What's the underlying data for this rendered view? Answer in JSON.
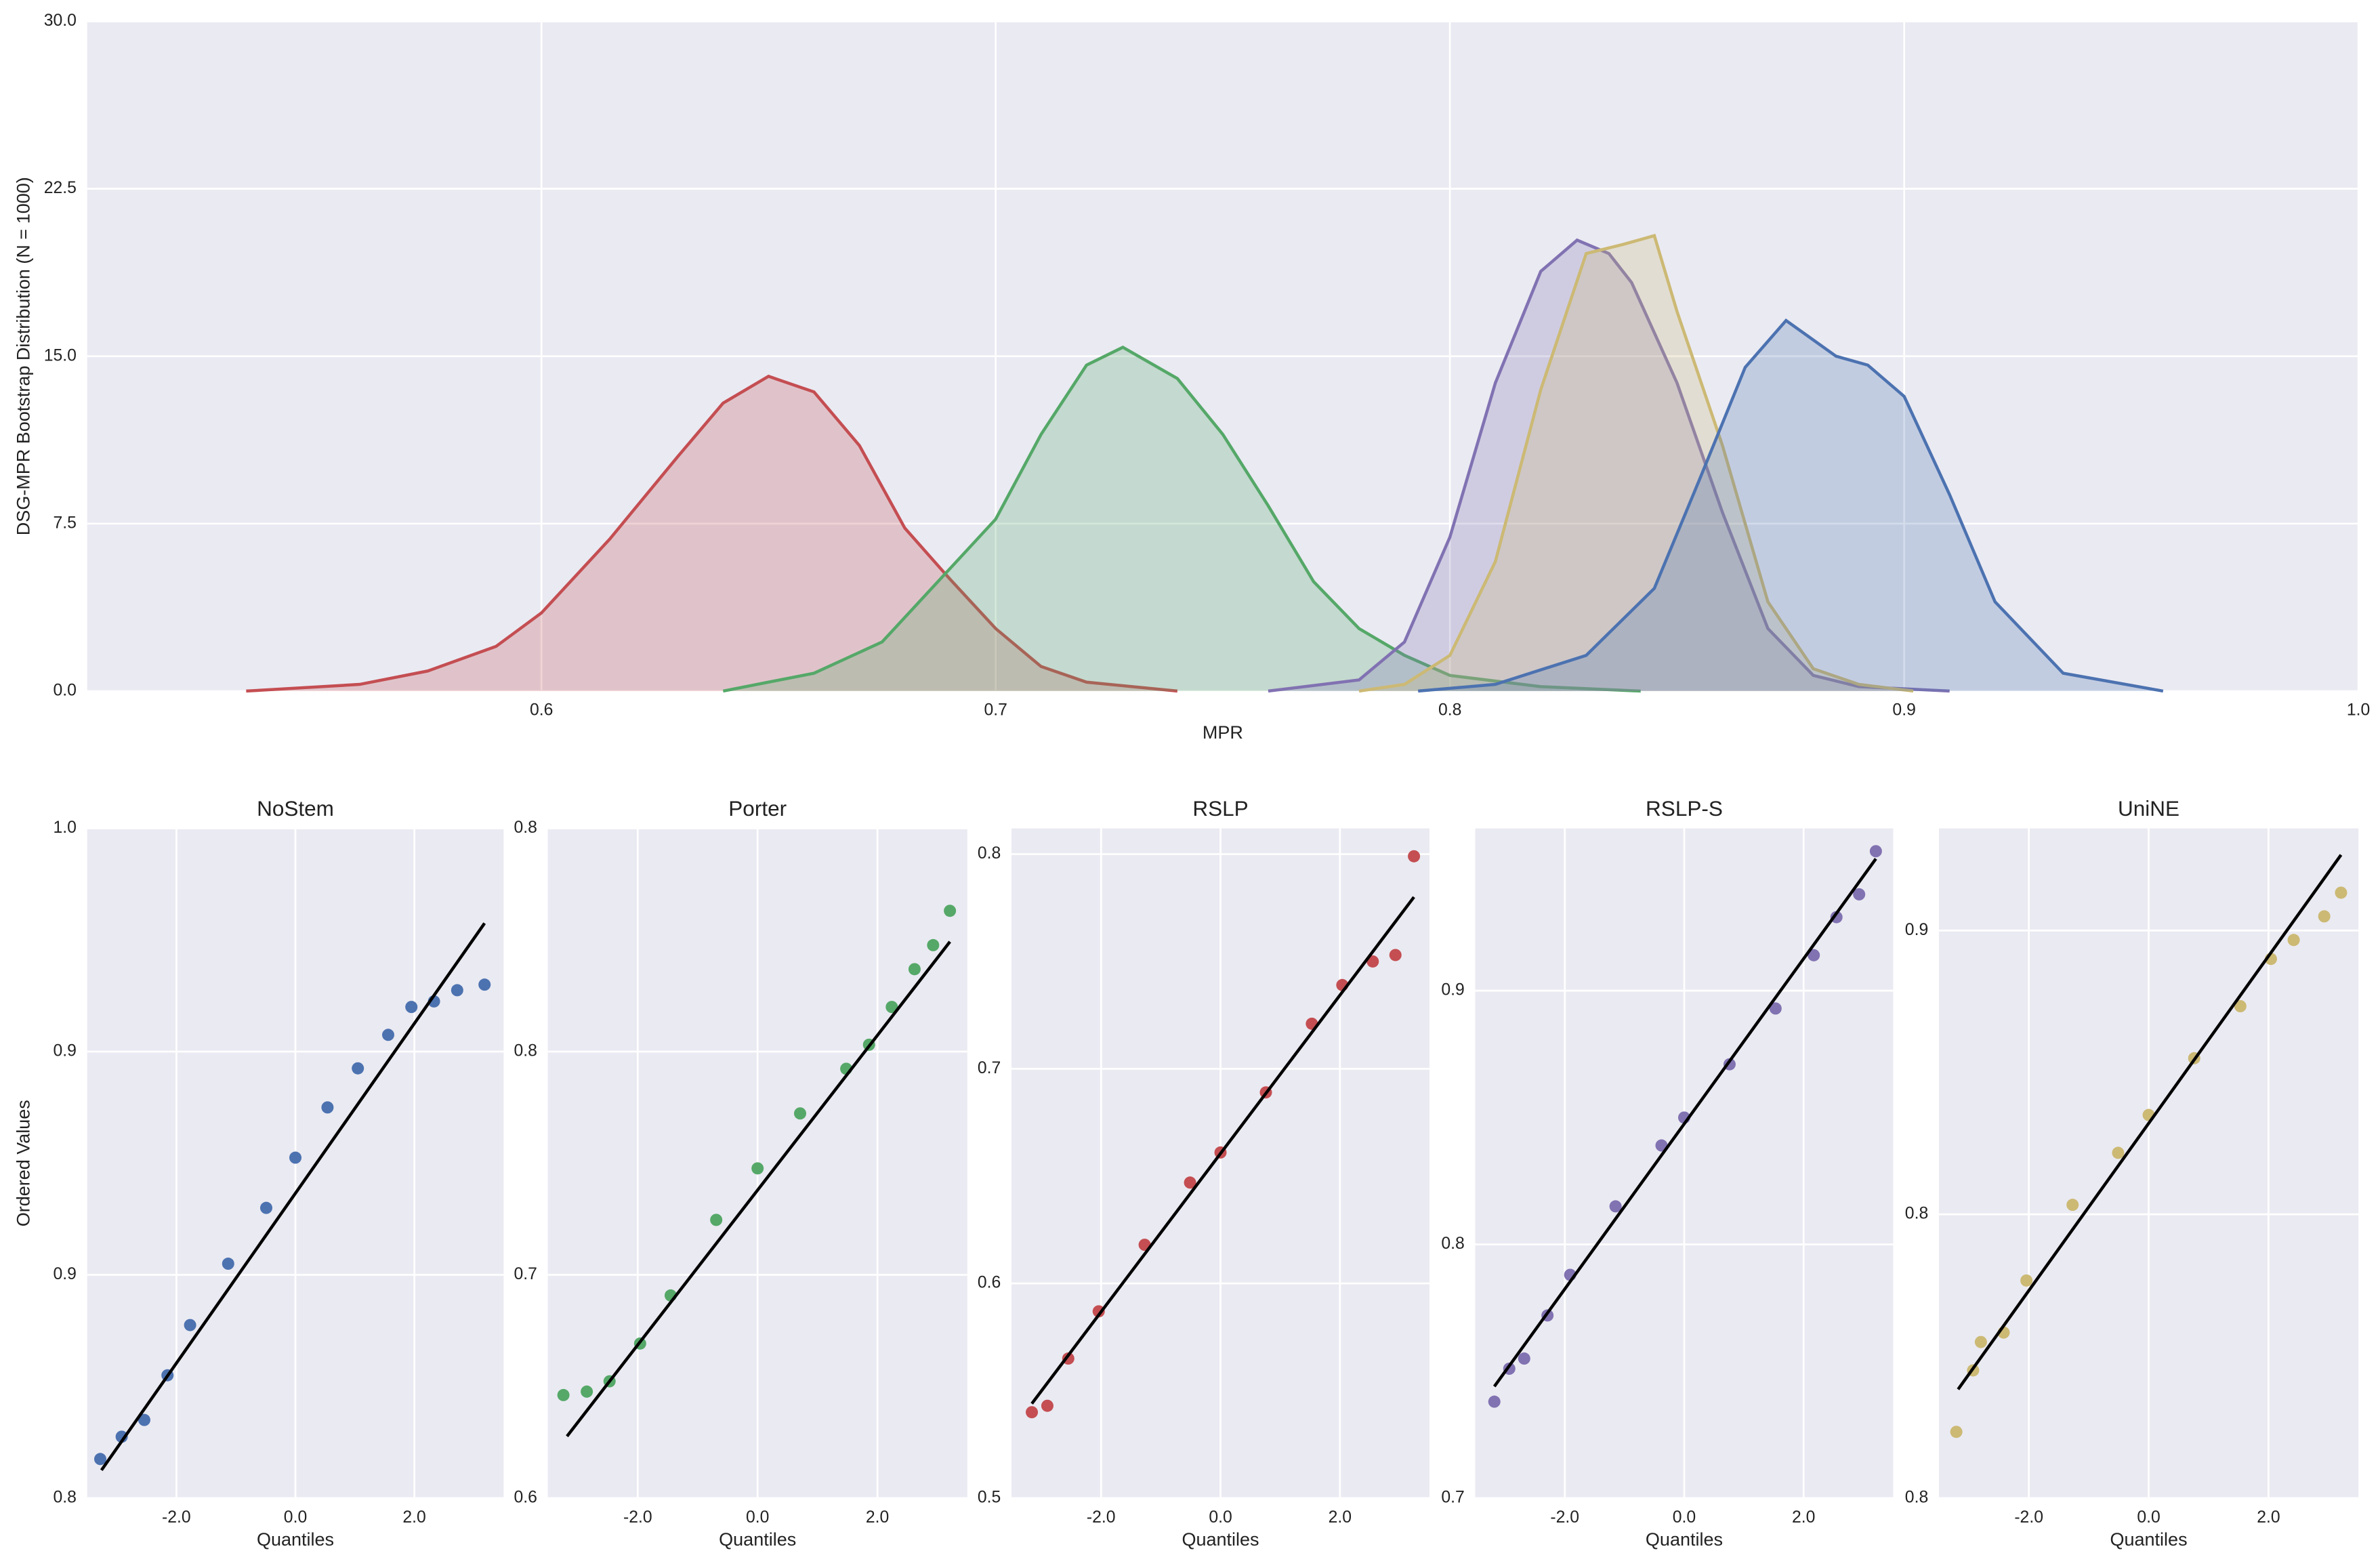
{
  "chart_data": [
    {
      "type": "kde",
      "xlabel": "MPR",
      "ylabel": "DSG-MPR Bootstrap Distribution (N = 1000)",
      "xlim": [
        0.5,
        1.0
      ],
      "xticks": [
        0.6,
        0.7,
        0.8,
        0.9,
        {
          "value": 1,
          "label": "1.0"
        }
      ],
      "ylim": [
        0,
        30
      ],
      "yticks": [
        {
          "value": 0,
          "label": "0.0"
        },
        7.5,
        {
          "value": 15,
          "label": "15.0"
        },
        22.5,
        {
          "value": 30,
          "label": "30.0"
        }
      ],
      "grid": true,
      "series": [
        {
          "color": "#c44e52",
          "x": [
            0.535,
            0.56,
            0.575,
            0.59,
            0.6,
            0.615,
            0.63,
            0.64,
            0.65,
            0.66,
            0.67,
            0.68,
            0.69,
            0.7,
            0.71,
            0.72,
            0.74
          ],
          "values": [
            0,
            0.3,
            0.9,
            2.0,
            3.5,
            6.8,
            10.5,
            12.9,
            14.1,
            13.4,
            11.0,
            7.3,
            5.0,
            2.8,
            1.1,
            0.4,
            0
          ]
        },
        {
          "color": "#55a868",
          "x": [
            0.64,
            0.66,
            0.675,
            0.69,
            0.7,
            0.71,
            0.72,
            0.728,
            0.74,
            0.75,
            0.76,
            0.77,
            0.78,
            0.79,
            0.8,
            0.82,
            0.842
          ],
          "values": [
            0,
            0.8,
            2.2,
            5.5,
            7.7,
            11.5,
            14.6,
            15.4,
            14.0,
            11.5,
            8.3,
            4.9,
            2.8,
            1.6,
            0.7,
            0.2,
            0
          ]
        },
        {
          "color": "#8172b2",
          "x": [
            0.76,
            0.78,
            0.79,
            0.8,
            0.81,
            0.82,
            0.828,
            0.835,
            0.84,
            0.85,
            0.86,
            0.87,
            0.88,
            0.89,
            0.91
          ],
          "values": [
            0,
            0.5,
            2.2,
            6.9,
            13.8,
            18.8,
            20.2,
            19.6,
            18.3,
            13.8,
            8.0,
            2.8,
            0.7,
            0.2,
            0
          ]
        },
        {
          "color": "#ccb974",
          "x": [
            0.78,
            0.79,
            0.8,
            0.81,
            0.82,
            0.83,
            0.838,
            0.845,
            0.85,
            0.86,
            0.87,
            0.88,
            0.89,
            0.902
          ],
          "values": [
            0,
            0.3,
            1.6,
            5.8,
            13.5,
            19.6,
            20.0,
            20.4,
            17.0,
            11.0,
            4.0,
            1.0,
            0.3,
            0
          ]
        },
        {
          "color": "#4c72b0",
          "x": [
            0.793,
            0.81,
            0.83,
            0.845,
            0.855,
            0.865,
            0.874,
            0.885,
            0.892,
            0.9,
            0.91,
            0.92,
            0.935,
            0.957
          ],
          "values": [
            0,
            0.3,
            1.6,
            4.6,
            9.5,
            14.5,
            16.6,
            15.0,
            14.6,
            13.2,
            8.8,
            4.0,
            0.8,
            0
          ]
        }
      ]
    },
    {
      "type": "qq",
      "title": "NoStem",
      "xlabel": "Quantiles",
      "ylabel": "Ordered Values",
      "xlim": [
        -3.5,
        3.5
      ],
      "xticks": [
        {
          "value": -2,
          "label": "-2.0"
        },
        {
          "value": 0,
          "label": "0.0"
        },
        {
          "value": 2,
          "label": "2.0"
        }
      ],
      "ylim": [
        0.84,
        0.96
      ],
      "yticks": [
        {
          "value": 0.84,
          "label": "0.8"
        },
        {
          "value": 0.88,
          "label": "0.9"
        },
        {
          "value": 0.92,
          "label": "0.9"
        },
        {
          "value": 0.96,
          "label": "1.0"
        }
      ],
      "grid": true,
      "color": "#4c72b0",
      "x": [
        -3.28,
        -2.92,
        -2.54,
        -2.15,
        -1.77,
        -1.13,
        -0.49,
        0,
        0.54,
        1.05,
        1.56,
        1.95,
        2.33,
        2.72,
        3.18
      ],
      "values": [
        0.847,
        0.851,
        0.854,
        0.862,
        0.871,
        0.882,
        0.892,
        0.901,
        0.91,
        0.917,
        0.923,
        0.928,
        0.929,
        0.931,
        0.932
      ],
      "fit_line": {
        "color": "#000000",
        "x": [
          -3.26,
          3.18
        ],
        "values": [
          0.845,
          0.943
        ]
      }
    },
    {
      "type": "qq",
      "title": "Porter",
      "xlabel": "Quantiles",
      "xlim": [
        -3.5,
        3.5
      ],
      "xticks": [
        {
          "value": -2,
          "label": "-2.0"
        },
        {
          "value": 0,
          "label": "0.0"
        },
        {
          "value": 2,
          "label": "2.0"
        }
      ],
      "ylim": [
        0.63,
        0.825
      ],
      "yticks": [
        {
          "value": 0.63,
          "label": "0.6"
        },
        {
          "value": 0.695,
          "label": "0.7"
        },
        {
          "value": 0.76,
          "label": "0.8"
        },
        {
          "value": 0.825,
          "label": "0.8"
        }
      ],
      "grid": true,
      "color": "#55a868",
      "x": [
        -3.24,
        -2.85,
        -2.47,
        -1.96,
        -1.45,
        -0.69,
        0,
        0.71,
        1.48,
        1.86,
        2.24,
        2.62,
        2.93,
        3.21
      ],
      "values": [
        0.66,
        0.661,
        0.664,
        0.675,
        0.689,
        0.711,
        0.726,
        0.742,
        0.755,
        0.762,
        0.773,
        0.784,
        0.791,
        0.801
      ],
      "fit_line": {
        "color": "#000000",
        "x": [
          -3.18,
          3.21
        ],
        "values": [
          0.648,
          0.792
        ]
      }
    },
    {
      "type": "qq",
      "title": "RSLP",
      "xlabel": "Quantiles",
      "xlim": [
        -3.5,
        3.5
      ],
      "xticks": [
        {
          "value": -2,
          "label": "-2.0"
        },
        {
          "value": 0,
          "label": "0.0"
        },
        {
          "value": 2,
          "label": "2.0"
        }
      ],
      "ylim": [
        0.5,
        0.812
      ],
      "yticks": [
        0.5,
        0.6,
        0.7,
        0.8
      ],
      "grid": true,
      "color": "#c44e52",
      "x": [
        -3.16,
        -2.9,
        -2.55,
        -2.04,
        -1.27,
        -0.51,
        0,
        0.76,
        1.53,
        2.04,
        2.55,
        2.93,
        3.24
      ],
      "values": [
        0.54,
        0.543,
        0.565,
        0.587,
        0.618,
        0.647,
        0.661,
        0.689,
        0.721,
        0.739,
        0.75,
        0.753,
        0.799
      ],
      "fit_line": {
        "color": "#000000",
        "x": [
          -3.16,
          3.24
        ],
        "values": [
          0.544,
          0.78
        ]
      }
    },
    {
      "type": "qq",
      "title": "RSLP-S",
      "xlabel": "Quantiles",
      "xlim": [
        -3.5,
        3.5
      ],
      "xticks": [
        {
          "value": -2,
          "label": "-2.0"
        },
        {
          "value": 0,
          "label": "0.0"
        },
        {
          "value": 2,
          "label": "2.0"
        }
      ],
      "ylim": [
        0.7,
        0.964
      ],
      "yticks": [
        0.7,
        0.8,
        0.9
      ],
      "grid": true,
      "color": "#8172b2",
      "x": [
        -3.18,
        -2.93,
        -2.68,
        -2.29,
        -1.91,
        -1.15,
        -0.38,
        0,
        0.76,
        1.53,
        2.17,
        2.55,
        2.93,
        3.21
      ],
      "values": [
        0.738,
        0.751,
        0.755,
        0.772,
        0.788,
        0.815,
        0.839,
        0.85,
        0.871,
        0.893,
        0.914,
        0.929,
        0.938,
        0.955
      ],
      "fit_line": {
        "color": "#000000",
        "x": [
          -3.18,
          3.21
        ],
        "values": [
          0.744,
          0.952
        ]
      }
    },
    {
      "type": "qq",
      "title": "UniNE",
      "xlabel": "Quantiles",
      "xlim": [
        -3.5,
        3.5
      ],
      "xticks": [
        {
          "value": -2,
          "label": "-2.0"
        },
        {
          "value": 0,
          "label": "0.0"
        },
        {
          "value": 2,
          "label": "2.0"
        }
      ],
      "ylim": [
        0.76,
        0.9016
      ],
      "yticks": [
        {
          "value": 0.76,
          "label": "0.8"
        },
        {
          "value": 0.82,
          "label": "0.8"
        },
        {
          "value": 0.88,
          "label": "0.9"
        }
      ],
      "grid": true,
      "color": "#ccb974",
      "x": [
        -3.21,
        -2.93,
        -2.8,
        -2.42,
        -2.04,
        -1.27,
        -0.51,
        0,
        0.76,
        1.53,
        2.04,
        2.42,
        2.93,
        3.21
      ],
      "values": [
        0.774,
        0.787,
        0.793,
        0.795,
        0.806,
        0.822,
        0.833,
        0.841,
        0.853,
        0.864,
        0.874,
        0.878,
        0.883,
        0.888
      ],
      "fit_line": {
        "color": "#000000",
        "x": [
          -3.18,
          3.21
        ],
        "values": [
          0.783,
          0.896
        ]
      }
    }
  ]
}
